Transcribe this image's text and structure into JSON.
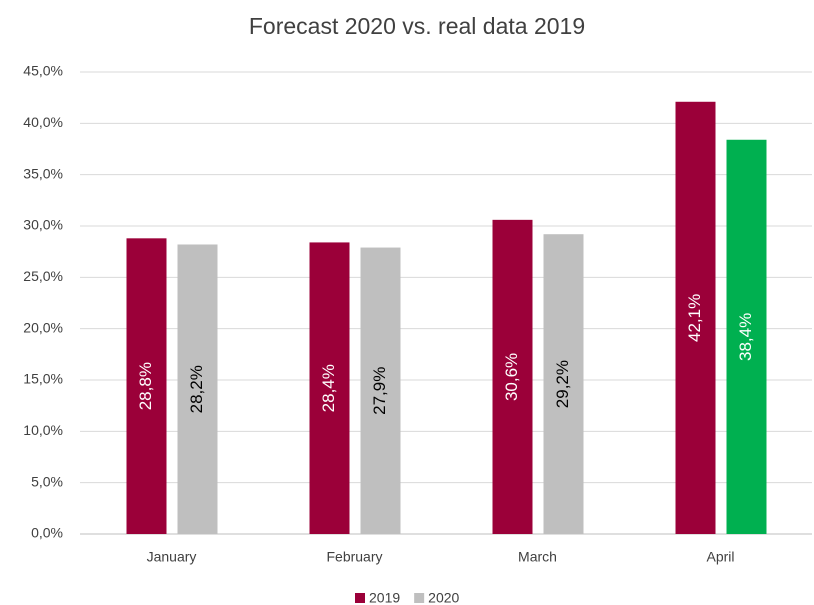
{
  "chart_data": {
    "type": "bar",
    "title": "Forecast 2020 vs. real data 2019",
    "categories": [
      "January",
      "February",
      "March",
      "April"
    ],
    "series": [
      {
        "name": "2019",
        "color": "#9b0039",
        "values": [
          28.8,
          28.4,
          30.6,
          42.1
        ],
        "value_labels": [
          "28,8%",
          "28,4%",
          "30,6%",
          "42,1%"
        ]
      },
      {
        "name": "2020",
        "color": "#bfbfbf",
        "colors": [
          "#bfbfbf",
          "#bfbfbf",
          "#bfbfbf",
          "#00b050"
        ],
        "values": [
          28.2,
          27.9,
          29.2,
          38.4
        ],
        "value_labels": [
          "28,2%",
          "27,9%",
          "29,2%",
          "38,4%"
        ]
      }
    ],
    "ylim": [
      0,
      45
    ],
    "yticks": [
      {
        "value": 0,
        "label": "0,0%"
      },
      {
        "value": 5,
        "label": "5,0%"
      },
      {
        "value": 10,
        "label": "10,0%"
      },
      {
        "value": 15,
        "label": "15,0%"
      },
      {
        "value": 20,
        "label": "20,0%"
      },
      {
        "value": 25,
        "label": "25,0%"
      },
      {
        "value": 30,
        "label": "30,0%"
      },
      {
        "value": 35,
        "label": "35,0%"
      },
      {
        "value": 40,
        "label": "40,0%"
      },
      {
        "value": 45,
        "label": "45,0%"
      }
    ],
    "grid": true,
    "legend": "bottom"
  }
}
